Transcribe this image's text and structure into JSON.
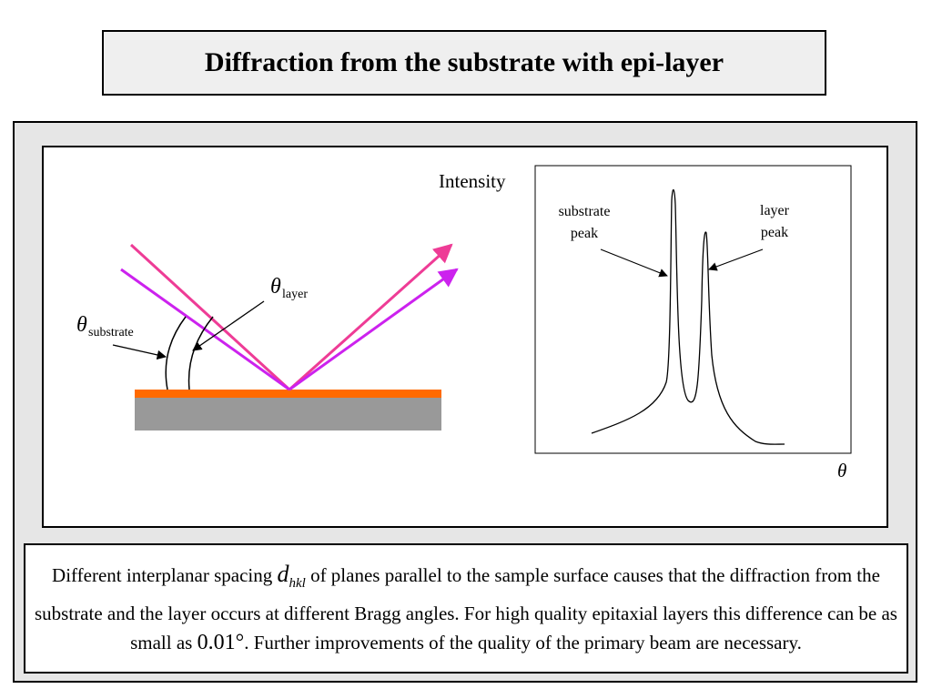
{
  "title": "Diffraction from the substrate with epi-layer",
  "figure": {
    "theta_symbol": "θ",
    "theta_substrate_sub": "substrate",
    "theta_layer_sub": "layer",
    "graph": {
      "ylabel": "Intensity",
      "xlabel": "θ",
      "substrate_label_line1": "substrate",
      "substrate_label_line2": "peak",
      "layer_label_line1": "layer",
      "layer_label_line2": "peak"
    },
    "colors": {
      "beam_pink": "#ee3c96",
      "beam_purple": "#cc22ee",
      "epi_layer": "#ff6a00",
      "substrate": "#999999"
    }
  },
  "description": {
    "part1": "Different interplanar spacing ",
    "d": "d",
    "d_sub": "hkl",
    "part2": " of planes parallel to the sample surface causes  that the diffraction from the substrate and the layer occurs at different Bragg angles. For high quality epitaxial layers this difference can be as small as ",
    "value": "0.01°",
    "part3": ". Further improvements of the quality of the primary beam are necessary."
  }
}
